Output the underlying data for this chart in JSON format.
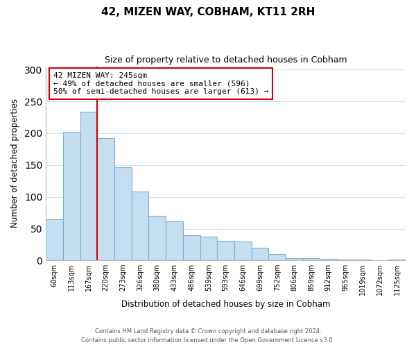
{
  "title": "42, MIZEN WAY, COBHAM, KT11 2RH",
  "subtitle": "Size of property relative to detached houses in Cobham",
  "xlabel": "Distribution of detached houses by size in Cobham",
  "ylabel": "Number of detached properties",
  "bar_labels": [
    "60sqm",
    "113sqm",
    "167sqm",
    "220sqm",
    "273sqm",
    "326sqm",
    "380sqm",
    "433sqm",
    "486sqm",
    "539sqm",
    "593sqm",
    "646sqm",
    "699sqm",
    "752sqm",
    "806sqm",
    "859sqm",
    "912sqm",
    "965sqm",
    "1019sqm",
    "1072sqm",
    "1125sqm"
  ],
  "bar_values": [
    65,
    202,
    234,
    192,
    146,
    108,
    70,
    62,
    40,
    38,
    31,
    30,
    20,
    10,
    4,
    4,
    3,
    2,
    1,
    0,
    1
  ],
  "bar_color": "#c6dff0",
  "bar_edge_color": "#7bafd4",
  "vline_x": 3,
  "vline_color": "#cc0000",
  "annotation_text": "42 MIZEN WAY: 245sqm\n← 49% of detached houses are smaller (596)\n50% of semi-detached houses are larger (613) →",
  "annotation_box_color": "#ffffff",
  "annotation_box_edge_color": "#cc0000",
  "ylim": [
    0,
    305
  ],
  "yticks": [
    0,
    50,
    100,
    150,
    200,
    250,
    300
  ],
  "footer_line1": "Contains HM Land Registry data © Crown copyright and database right 2024.",
  "footer_line2": "Contains public sector information licensed under the Open Government Licence v3.0.",
  "background_color": "#ffffff",
  "grid_color": "#cde0f0"
}
